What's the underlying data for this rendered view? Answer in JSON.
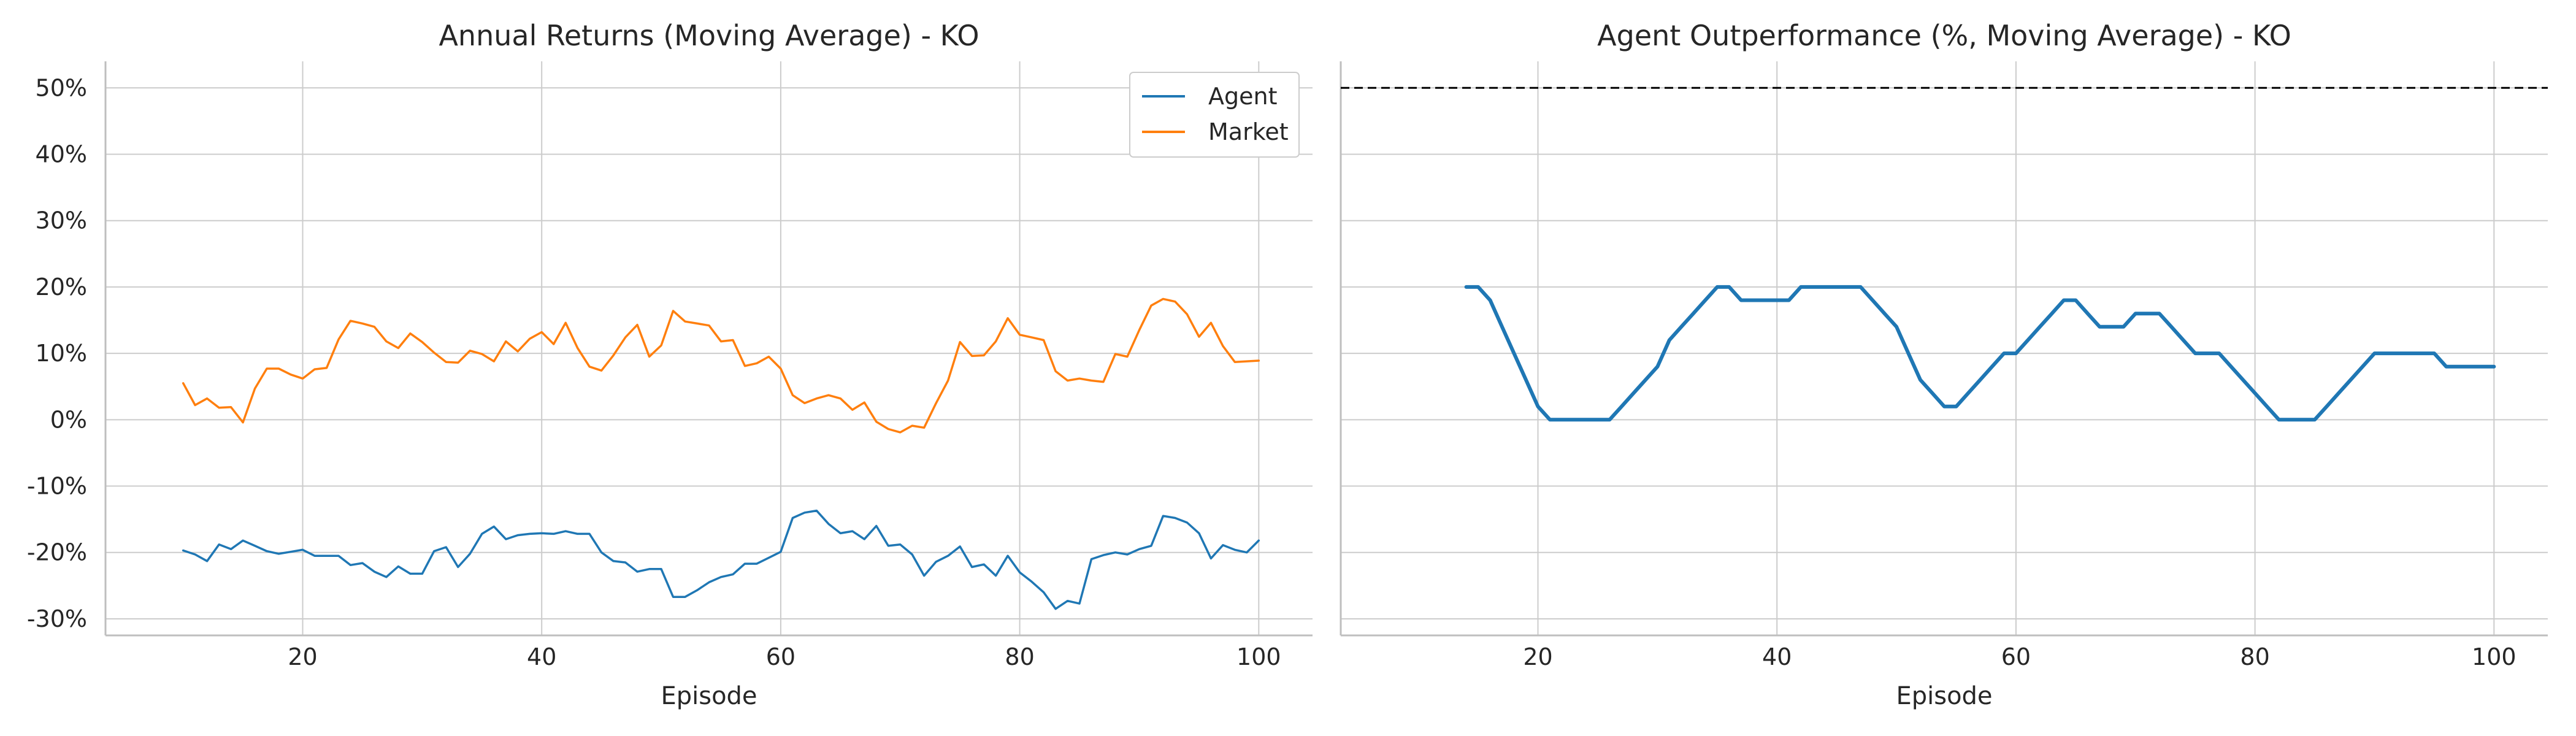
{
  "chart_data": [
    {
      "type": "line",
      "title": "Annual Returns (Moving Average) - KO",
      "xlabel": "Episode",
      "ylabel": "",
      "xlim": [
        3.5,
        104.5
      ],
      "ylim": [
        -0.325,
        0.54
      ],
      "xticks": [
        20,
        40,
        60,
        80,
        100
      ],
      "yticks": [
        -0.3,
        -0.2,
        -0.1,
        0.0,
        0.1,
        0.2,
        0.3,
        0.4,
        0.5
      ],
      "ytick_labels": [
        "-30%",
        "-20%",
        "-10%",
        "0%",
        "10%",
        "20%",
        "30%",
        "40%",
        "50%"
      ],
      "xtick_labels": [
        "20",
        "40",
        "60",
        "80",
        "100"
      ],
      "grid": true,
      "legend": "top-right",
      "x": [
        10,
        11,
        12,
        13,
        14,
        15,
        16,
        17,
        18,
        19,
        20,
        21,
        22,
        23,
        24,
        25,
        26,
        27,
        28,
        29,
        30,
        31,
        32,
        33,
        34,
        35,
        36,
        37,
        38,
        39,
        40,
        41,
        42,
        43,
        44,
        45,
        46,
        47,
        48,
        49,
        50,
        51,
        52,
        53,
        54,
        55,
        56,
        57,
        58,
        59,
        60,
        61,
        62,
        63,
        64,
        65,
        66,
        67,
        68,
        69,
        70,
        71,
        72,
        73,
        74,
        75,
        76,
        77,
        78,
        79,
        80,
        81,
        82,
        83,
        84,
        85,
        86,
        87,
        88,
        89,
        90,
        91,
        92,
        93,
        94,
        95,
        96,
        97,
        98,
        99,
        100
      ],
      "series": [
        {
          "name": "Agent",
          "color": "#1f77b4",
          "values": [
            -0.197,
            -0.203,
            -0.213,
            -0.188,
            -0.195,
            -0.182,
            -0.19,
            -0.198,
            -0.202,
            -0.199,
            -0.196,
            -0.205,
            -0.205,
            -0.205,
            -0.219,
            -0.216,
            -0.229,
            -0.237,
            -0.221,
            -0.232,
            -0.232,
            -0.198,
            -0.192,
            -0.222,
            -0.202,
            -0.172,
            -0.161,
            -0.18,
            -0.174,
            -0.172,
            -0.171,
            -0.172,
            -0.168,
            -0.172,
            -0.172,
            -0.2,
            -0.213,
            -0.215,
            -0.229,
            -0.225,
            -0.225,
            -0.267,
            -0.267,
            -0.257,
            -0.245,
            -0.237,
            -0.233,
            -0.217,
            -0.217,
            -0.208,
            -0.199,
            -0.148,
            -0.14,
            -0.137,
            -0.157,
            -0.171,
            -0.168,
            -0.18,
            -0.16,
            -0.19,
            -0.188,
            -0.203,
            -0.235,
            -0.214,
            -0.205,
            -0.191,
            -0.222,
            -0.218,
            -0.235,
            -0.205,
            -0.23,
            -0.244,
            -0.26,
            -0.285,
            -0.273,
            -0.277,
            -0.21,
            -0.204,
            -0.2,
            -0.203,
            -0.195,
            -0.19,
            -0.145,
            -0.148,
            -0.155,
            -0.171,
            -0.209,
            -0.189,
            -0.196,
            -0.2,
            -0.182
          ]
        },
        {
          "name": "Market",
          "color": "#ff7f0e",
          "values": [
            0.055,
            0.022,
            0.032,
            0.018,
            0.019,
            -0.004,
            0.047,
            0.077,
            0.077,
            0.068,
            0.062,
            0.076,
            0.078,
            0.121,
            0.149,
            0.145,
            0.14,
            0.118,
            0.108,
            0.13,
            0.117,
            0.101,
            0.087,
            0.086,
            0.104,
            0.099,
            0.088,
            0.118,
            0.103,
            0.122,
            0.132,
            0.114,
            0.146,
            0.108,
            0.08,
            0.074,
            0.097,
            0.124,
            0.143,
            0.095,
            0.112,
            0.164,
            0.148,
            0.145,
            0.142,
            0.118,
            0.12,
            0.081,
            0.085,
            0.095,
            0.077,
            0.037,
            0.025,
            0.032,
            0.037,
            0.032,
            0.015,
            0.026,
            -0.003,
            -0.014,
            -0.019,
            -0.009,
            -0.012,
            0.025,
            0.059,
            0.117,
            0.096,
            0.097,
            0.118,
            0.153,
            0.128,
            0.124,
            0.12,
            0.073,
            0.059,
            0.062,
            0.059,
            0.057,
            0.099,
            0.095,
            0.135,
            0.172,
            0.182,
            0.178,
            0.159,
            0.125,
            0.146,
            0.111,
            0.087,
            0.088,
            0.089
          ]
        }
      ]
    },
    {
      "type": "line",
      "title": "Agent Outperformance (%, Moving Average) - KO",
      "xlabel": "Episode",
      "ylabel": "",
      "xlim": [
        3.5,
        104.5
      ],
      "ylim": [
        -0.325,
        0.54
      ],
      "xticks": [
        20,
        40,
        60,
        80,
        100
      ],
      "xtick_labels": [
        "20",
        "40",
        "60",
        "80",
        "100"
      ],
      "grid": true,
      "reference_line": {
        "y": 0.5,
        "style": "dashed",
        "color": "#000000"
      },
      "x": [
        14,
        15,
        16,
        17,
        18,
        19,
        20,
        21,
        22,
        23,
        24,
        25,
        26,
        27,
        28,
        29,
        30,
        31,
        32,
        33,
        34,
        35,
        36,
        37,
        38,
        39,
        40,
        41,
        42,
        43,
        44,
        45,
        46,
        47,
        48,
        49,
        50,
        51,
        52,
        53,
        54,
        55,
        56,
        57,
        58,
        59,
        60,
        61,
        62,
        63,
        64,
        65,
        66,
        67,
        68,
        69,
        70,
        71,
        72,
        73,
        74,
        75,
        76,
        77,
        78,
        79,
        80,
        81,
        82,
        83,
        84,
        85,
        86,
        87,
        88,
        89,
        90,
        91,
        92,
        93,
        94,
        95,
        96,
        97,
        98,
        99,
        100
      ],
      "series": [
        {
          "color": "#1f77b4",
          "values": [
            0.2,
            0.2,
            0.18,
            0.14,
            0.1,
            0.06,
            0.02,
            0.0,
            0.0,
            0.0,
            0.0,
            0.0,
            0.0,
            0.02,
            0.04,
            0.06,
            0.08,
            0.12,
            0.14,
            0.16,
            0.18,
            0.2,
            0.2,
            0.18,
            0.18,
            0.18,
            0.18,
            0.18,
            0.2,
            0.2,
            0.2,
            0.2,
            0.2,
            0.2,
            0.18,
            0.16,
            0.14,
            0.1,
            0.06,
            0.04,
            0.02,
            0.02,
            0.04,
            0.06,
            0.08,
            0.1,
            0.1,
            0.12,
            0.14,
            0.16,
            0.18,
            0.18,
            0.16,
            0.14,
            0.14,
            0.14,
            0.16,
            0.16,
            0.16,
            0.14,
            0.12,
            0.1,
            0.1,
            0.1,
            0.08,
            0.06,
            0.04,
            0.02,
            0.0,
            0.0,
            0.0,
            0.0,
            0.02,
            0.04,
            0.06,
            0.08,
            0.1,
            0.1,
            0.1,
            0.1,
            0.1,
            0.1,
            0.08,
            0.08,
            0.08,
            0.08,
            0.08
          ]
        }
      ]
    }
  ]
}
